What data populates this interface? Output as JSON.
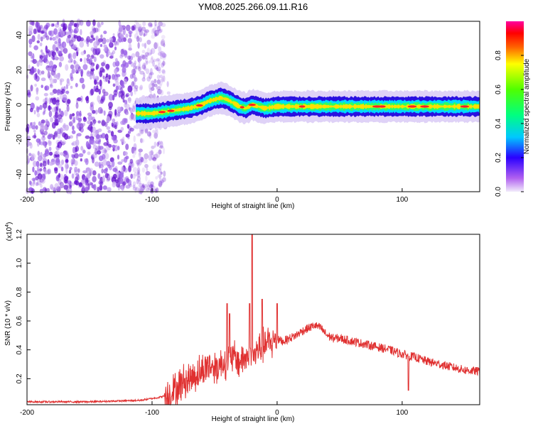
{
  "title": "YM08.2025.266.09.11.R16",
  "colors": {
    "snr_line": "#e03030",
    "speckle_dark": "#6a1ad0",
    "speckle_light": "#c8a8f0",
    "axis": "#000000"
  },
  "chart_data": [
    {
      "type": "heatmap",
      "xlabel": "Height of straight line (km)",
      "ylabel": "Frequency (Hz)",
      "xlim": [
        -200,
        162
      ],
      "ylim": [
        -50,
        48
      ],
      "xticks": [
        -200,
        -100,
        0,
        100
      ],
      "xtick_labels": [
        "-200",
        "-100",
        "0",
        "100"
      ],
      "yticks": [
        -40,
        -20,
        0,
        20,
        40
      ],
      "ytick_labels": [
        "-40",
        "-20",
        "0",
        "20",
        "40"
      ],
      "noise_region_x": [
        -200,
        -90
      ],
      "ridge": {
        "x": [
          -113,
          -100,
          -90,
          -80,
          -70,
          -60,
          -55,
          -50,
          -45,
          -40,
          -35,
          -30,
          -25,
          -20,
          -15,
          -10,
          0,
          20,
          40,
          60,
          80,
          100,
          120,
          140,
          162
        ],
        "y": [
          -5,
          -5,
          -4,
          -3,
          -2,
          0,
          2,
          3,
          4,
          3,
          1,
          -1,
          -2,
          0,
          -1,
          -2,
          -1,
          -1,
          -1,
          -1,
          -1,
          -1,
          -1,
          -1,
          -1
        ]
      },
      "colorbar": {
        "label": "Normalized spectral amplitude",
        "range": [
          0,
          1
        ],
        "ticks": [
          0.0,
          0.2,
          0.4,
          0.6,
          0.8
        ],
        "tick_labels": [
          "0.0",
          "0.2",
          "0.4",
          "0.6",
          "0.8"
        ]
      }
    },
    {
      "type": "line",
      "xlabel": "Height of straight line (km)",
      "ylabel": "SNR (10 * v/v)",
      "yscale_label": "(x10",
      "yscale_exp": "4",
      "xlim": [
        -200,
        162
      ],
      "ylim": [
        0.02,
        1.2
      ],
      "xticks": [
        -200,
        -100,
        0,
        100
      ],
      "xtick_labels": [
        "-200",
        "-100",
        "0",
        "100"
      ],
      "yticks": [
        0.2,
        0.4,
        0.6,
        0.8,
        1.0,
        1.2
      ],
      "ytick_labels": [
        "0.2",
        "0.4",
        "0.6",
        "0.8",
        "1.0",
        "1.2"
      ],
      "envelope": {
        "x": [
          -200,
          -150,
          -110,
          -95,
          -90,
          -85,
          -80,
          -75,
          -70,
          -65,
          -60,
          -55,
          -50,
          -45,
          -40,
          -35,
          -30,
          -25,
          -22,
          -20,
          -18,
          -15,
          -10,
          -5,
          0,
          5,
          10,
          15,
          20,
          25,
          30,
          35,
          40,
          45,
          50,
          60,
          70,
          80,
          90,
          100,
          110,
          120,
          130,
          140,
          150,
          162
        ],
        "y": [
          0.04,
          0.04,
          0.05,
          0.07,
          0.08,
          0.1,
          0.13,
          0.18,
          0.2,
          0.23,
          0.25,
          0.3,
          0.28,
          0.3,
          0.33,
          0.35,
          0.32,
          0.35,
          0.35,
          0.38,
          0.36,
          0.4,
          0.43,
          0.45,
          0.47,
          0.46,
          0.48,
          0.5,
          0.53,
          0.55,
          0.57,
          0.55,
          0.5,
          0.48,
          0.48,
          0.46,
          0.44,
          0.42,
          0.4,
          0.37,
          0.35,
          0.32,
          0.3,
          0.28,
          0.26,
          0.25
        ]
      },
      "peaks": [
        {
          "x": -40,
          "y": 0.72
        },
        {
          "x": -38,
          "y": 0.65
        },
        {
          "x": -22,
          "y": 0.72
        },
        {
          "x": -20,
          "y": 1.2
        },
        {
          "x": -12,
          "y": 0.75
        },
        {
          "x": 0,
          "y": 0.72
        },
        {
          "x": 105,
          "y": 0.12
        }
      ]
    }
  ]
}
